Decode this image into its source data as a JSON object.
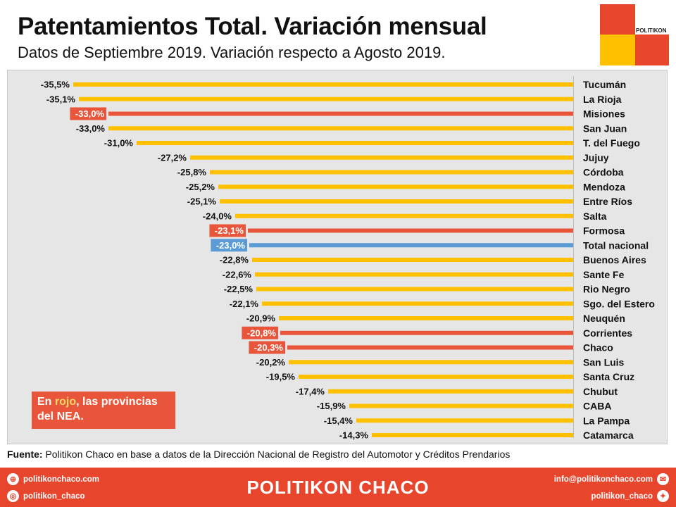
{
  "header": {
    "title": "Patentamientos Total. Variación mensual",
    "subtitle": "Datos de Septiembre 2019. Variación respecto a Agosto 2019."
  },
  "logo": {
    "text": "POLITIKON",
    "colors": [
      "#e8452d",
      "#ffc000"
    ]
  },
  "note": {
    "prefix": "En ",
    "highlight": "rojo",
    "suffix": ", las provincias del NEA."
  },
  "source": {
    "label": "Fuente:",
    "text": "Politikon Chaco en base a datos de la Dirección Nacional de Registro del Automotor y Créditos Prendarios"
  },
  "footer": {
    "brand": "POLITIKON CHACO",
    "website": "politikonchaco.com",
    "instagram": "politikon_chaco",
    "email": "info@politikonchaco.com",
    "twitter": "politikon_chaco"
  },
  "colors": {
    "default": "#ffc000",
    "nea": "#e8553a",
    "national": "#5b9bd5",
    "accent": "#e8452d"
  },
  "chart_data": {
    "type": "bar",
    "orientation": "horizontal",
    "xlim": [
      -40,
      0
    ],
    "categories": [
      "Tucumán",
      "La Rioja",
      "Misiones",
      "San Juan",
      "T. del Fuego",
      "Jujuy",
      "Córdoba",
      "Mendoza",
      "Entre Ríos",
      "Salta",
      "Formosa",
      "Total nacional",
      "Buenos Aires",
      "Sante Fe",
      "Rio Negro",
      "Sgo. del Estero",
      "Neuquén",
      "Corrientes",
      "Chaco",
      "San Luis",
      "Santa Cruz",
      "Chubut",
      "CABA",
      "La Pampa",
      "Catamarca"
    ],
    "values": [
      -35.5,
      -35.1,
      -33.0,
      -33.0,
      -31.0,
      -27.2,
      -25.8,
      -25.2,
      -25.1,
      -24.0,
      -23.1,
      -23.0,
      -22.8,
      -22.6,
      -22.5,
      -22.1,
      -20.9,
      -20.8,
      -20.3,
      -20.2,
      -19.5,
      -17.4,
      -15.9,
      -15.4,
      -14.3
    ],
    "labels": [
      "-35,5%",
      "-35,1%",
      "-33,0%",
      "-33,0%",
      "-31,0%",
      "-27,2%",
      "-25,8%",
      "-25,2%",
      "-25,1%",
      "-24,0%",
      "-23,1%",
      "-23,0%",
      "-22,8%",
      "-22,6%",
      "-22,5%",
      "-22,1%",
      "-20,9%",
      "-20,8%",
      "-20,3%",
      "-20,2%",
      "-19,5%",
      "-17,4%",
      "-15,9%",
      "-15,4%",
      "-14,3%"
    ],
    "groups": [
      "other",
      "other",
      "nea",
      "other",
      "other",
      "other",
      "other",
      "other",
      "other",
      "other",
      "nea",
      "national",
      "other",
      "other",
      "other",
      "other",
      "other",
      "nea",
      "nea",
      "other",
      "other",
      "other",
      "other",
      "other",
      "other"
    ]
  }
}
